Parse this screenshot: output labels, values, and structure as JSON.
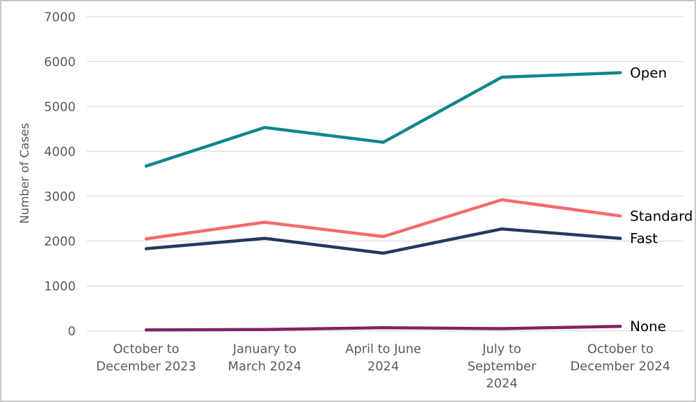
{
  "chart_data": {
    "type": "line",
    "title": "",
    "xlabel": "",
    "ylabel": "Number of Cases",
    "ylim": [
      0,
      7000
    ],
    "ytick_interval": 1000,
    "ytick_labels": [
      "0",
      "1000",
      "2000",
      "3000",
      "4000",
      "5000",
      "6000",
      "7000"
    ],
    "grid": true,
    "legend_position": "end-of-line-labels",
    "categories": [
      "October to December 2023",
      "January to March 2024",
      "April to June 2024",
      "July to September 2024",
      "October to December 2024"
    ],
    "category_label_lines": [
      [
        "October to",
        "December 2023"
      ],
      [
        "January to",
        "March 2024"
      ],
      [
        "April to June",
        "2024"
      ],
      [
        "July to",
        "September",
        "2024"
      ],
      [
        "October to",
        "December 2024"
      ]
    ],
    "series": [
      {
        "name": "Open",
        "color": "#0F868C",
        "values": [
          3670,
          4530,
          4200,
          5650,
          5750
        ]
      },
      {
        "name": "Standard",
        "color": "#F56A6D",
        "values": [
          2050,
          2420,
          2100,
          2920,
          2560
        ]
      },
      {
        "name": "Fast",
        "color": "#24395E",
        "values": [
          1830,
          2060,
          1730,
          2270,
          2060
        ]
      },
      {
        "name": "None",
        "color": "#832164",
        "values": [
          20,
          30,
          70,
          50,
          100
        ]
      }
    ]
  },
  "colors": {
    "grid": "#DEDEDE",
    "tick_text": "#5A5A5A",
    "axis_title_text": "#5A5A5A",
    "series_label_text": "#000000",
    "frame_border": "#C6C6C6",
    "background": "#FFFFFF"
  }
}
